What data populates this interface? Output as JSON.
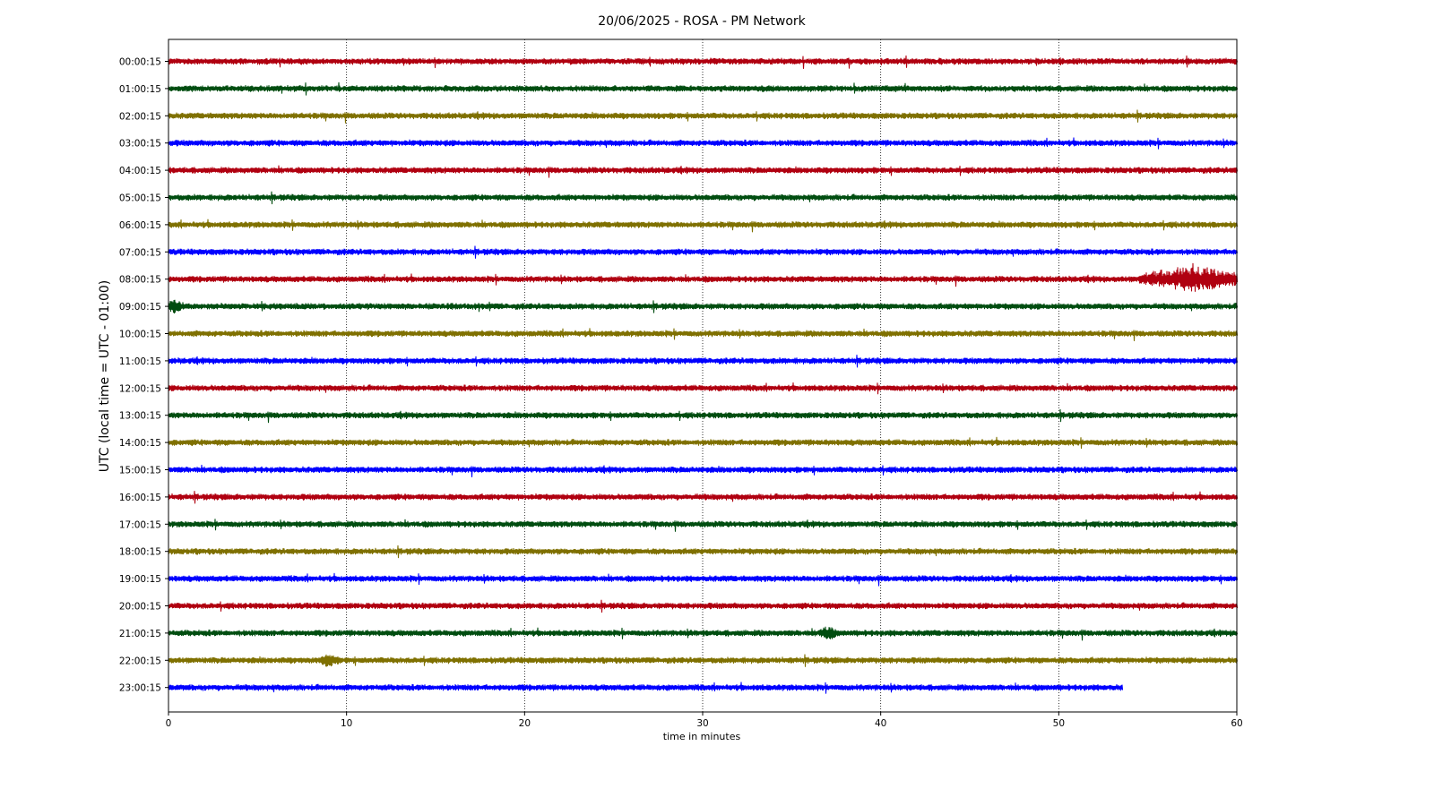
{
  "chart_data": {
    "type": "line",
    "title": "20/06/2025 - ROSA - PM Network",
    "xlabel": "time in minutes",
    "ylabel": "UTC (local time = UTC - 01:00)",
    "xlim": [
      0,
      60
    ],
    "xticks": [
      0,
      10,
      20,
      30,
      40,
      50,
      60
    ],
    "grid": "x-dotted",
    "colors": [
      "#b00010",
      "#004d10",
      "#7f7000",
      "#0000ff"
    ],
    "rows": [
      {
        "label": "00:00:15",
        "end": 60
      },
      {
        "label": "01:00:15",
        "end": 60
      },
      {
        "label": "02:00:15",
        "end": 60
      },
      {
        "label": "03:00:15",
        "end": 60
      },
      {
        "label": "04:00:15",
        "end": 60
      },
      {
        "label": "05:00:15",
        "end": 60
      },
      {
        "label": "06:00:15",
        "end": 60
      },
      {
        "label": "07:00:15",
        "end": 60
      },
      {
        "label": "08:00:15",
        "end": 60,
        "event_start": 54.5,
        "event_peak": 57.5
      },
      {
        "label": "09:00:15",
        "end": 60,
        "burst_at": 0.3
      },
      {
        "label": "10:00:15",
        "end": 60
      },
      {
        "label": "11:00:15",
        "end": 60
      },
      {
        "label": "12:00:15",
        "end": 60
      },
      {
        "label": "13:00:15",
        "end": 60
      },
      {
        "label": "14:00:15",
        "end": 60
      },
      {
        "label": "15:00:15",
        "end": 60
      },
      {
        "label": "16:00:15",
        "end": 60
      },
      {
        "label": "17:00:15",
        "end": 60
      },
      {
        "label": "18:00:15",
        "end": 60
      },
      {
        "label": "19:00:15",
        "end": 60
      },
      {
        "label": "20:00:15",
        "end": 60
      },
      {
        "label": "21:00:15",
        "end": 60,
        "burst_at": 37
      },
      {
        "label": "22:00:15",
        "end": 60,
        "burst_at": 9
      },
      {
        "label": "23:00:15",
        "end": 53.6
      }
    ]
  }
}
